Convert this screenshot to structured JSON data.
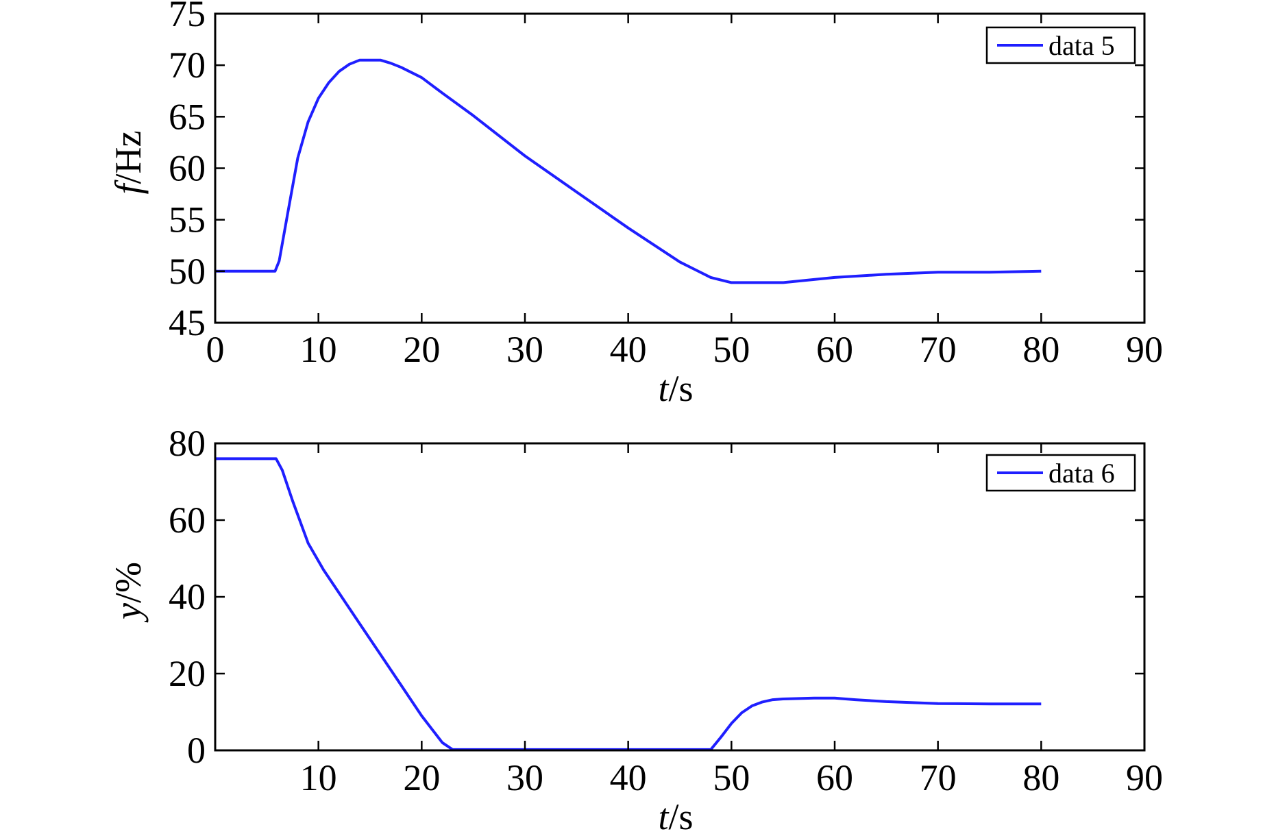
{
  "chart_data": [
    {
      "type": "line",
      "xlabel_italic": "t",
      "xlabel_unit": "/s",
      "ylabel_italic": "f",
      "ylabel_unit": "/Hz",
      "xlim": [
        0,
        90
      ],
      "ylim": [
        45,
        75
      ],
      "xticks": [
        0,
        10,
        20,
        30,
        40,
        50,
        60,
        70,
        80,
        90
      ],
      "yticks": [
        45,
        50,
        55,
        60,
        65,
        70,
        75
      ],
      "grid": false,
      "legend_position": "top-right",
      "color": "#1f1fff",
      "series": [
        {
          "name": "data 5",
          "x": [
            0,
            5.8,
            6.2,
            7,
            8,
            9,
            10,
            11,
            12,
            13,
            14,
            15,
            16,
            17,
            18,
            20,
            22,
            25,
            30,
            35,
            40,
            45,
            48,
            50,
            51,
            55,
            58,
            60,
            65,
            70,
            75,
            80
          ],
          "y": [
            50,
            50,
            51,
            55.5,
            61,
            64.5,
            66.8,
            68.3,
            69.4,
            70.1,
            70.5,
            70.5,
            70.5,
            70.2,
            69.8,
            68.8,
            67.3,
            65.1,
            61.2,
            57.7,
            54.2,
            50.9,
            49.4,
            48.9,
            48.9,
            48.9,
            49.2,
            49.4,
            49.7,
            49.9,
            49.9,
            50
          ]
        }
      ]
    },
    {
      "type": "line",
      "xlabel_italic": "t",
      "xlabel_unit": "/s",
      "ylabel_italic": "y",
      "ylabel_unit": "/%",
      "xlim": [
        0,
        90
      ],
      "ylim": [
        0,
        80
      ],
      "xticks": [
        10,
        20,
        30,
        40,
        50,
        60,
        70,
        80,
        90
      ],
      "yticks": [
        0,
        20,
        40,
        60,
        80
      ],
      "grid": false,
      "legend_position": "top-right",
      "color": "#1f1fff",
      "series": [
        {
          "name": "data 6",
          "x": [
            0,
            5.9,
            6.5,
            7.5,
            9,
            10.5,
            12,
            14,
            16,
            18,
            20,
            22,
            23,
            30,
            40,
            48,
            49,
            50,
            51,
            52,
            53,
            54,
            55,
            58,
            60,
            62,
            65,
            70,
            75,
            80
          ],
          "y": [
            76,
            76,
            73,
            65,
            54,
            47,
            41,
            33,
            25,
            17,
            9,
            2,
            0.2,
            0.2,
            0.2,
            0.2,
            3.5,
            7,
            9.8,
            11.6,
            12.6,
            13.2,
            13.4,
            13.6,
            13.6,
            13.2,
            12.7,
            12.2,
            12.1,
            12.1
          ]
        }
      ]
    }
  ]
}
